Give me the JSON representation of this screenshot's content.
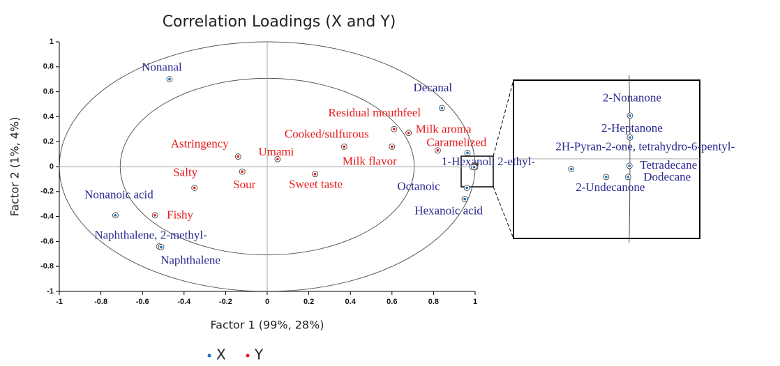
{
  "chart_data": {
    "type": "scatter",
    "title": "Correlation Loadings (X and Y)",
    "x_label": "Factor 1 (99%, 28%)",
    "y_label": "Factor 2 (1%, 4%)",
    "xlim": [
      -1,
      1
    ],
    "ylim": [
      -1,
      1
    ],
    "xticks": [
      -1,
      -0.8,
      -0.6,
      -0.4,
      -0.2,
      0,
      0.2,
      0.4,
      0.6,
      0.8,
      1
    ],
    "yticks": [
      -1,
      -0.8,
      -0.6,
      -0.4,
      -0.2,
      0,
      0.2,
      0.4,
      0.6,
      0.8,
      1
    ],
    "inset": {
      "xlim": [
        0.975,
        1.015
      ],
      "ylim": [
        -0.0171,
        0.0169
      ]
    },
    "series": [
      {
        "name": "X",
        "color": "#1f6fc4",
        "label_color": "#2a2a90",
        "labels": [
          "Nonanal",
          "Decanal",
          "Nonanoic acid",
          "Naphthalene, 2-methyl-",
          "Naphthalene",
          "Octanoic",
          "Hexanoic acid",
          "1-Hexanol, 2-ethyl-",
          "2-Nonanone",
          "2-Heptanone",
          "2H-Pyran-2-one, tetrahydro-6-pentyl-",
          "Tetradecane",
          "Dodecane",
          "2-Undecanone"
        ],
        "x": [
          -0.47,
          0.84,
          -0.73,
          -0.52,
          -0.51,
          0.96,
          0.95,
          0.963,
          1.0,
          1.0,
          0.9874,
          0.9999,
          0.9996,
          0.9949
        ],
        "values": [
          0.7,
          0.47,
          -0.39,
          -0.64,
          -0.645,
          -0.17,
          -0.26,
          0.11,
          0.0093,
          0.0046,
          -0.0022,
          -0.0015,
          -0.0039,
          -0.0039
        ]
      },
      {
        "name": "Y",
        "color": "#e8191a",
        "label_color": "#e8191a",
        "labels": [
          "Residual mouthfeel",
          "Milk aroma",
          "Caramelized",
          "Cooked/sulfurous",
          "Milk flavor",
          "Astringency",
          "Umami",
          "Salty",
          "Sour",
          "Sweet taste",
          "Fishy"
        ],
        "x": [
          0.61,
          0.68,
          0.82,
          0.37,
          0.6,
          -0.14,
          0.05,
          -0.35,
          -0.12,
          0.23,
          -0.54
        ],
        "values": [
          0.3,
          0.27,
          0.13,
          0.16,
          0.16,
          0.08,
          0.06,
          -0.17,
          -0.04,
          -0.06,
          -0.39
        ]
      }
    ]
  }
}
